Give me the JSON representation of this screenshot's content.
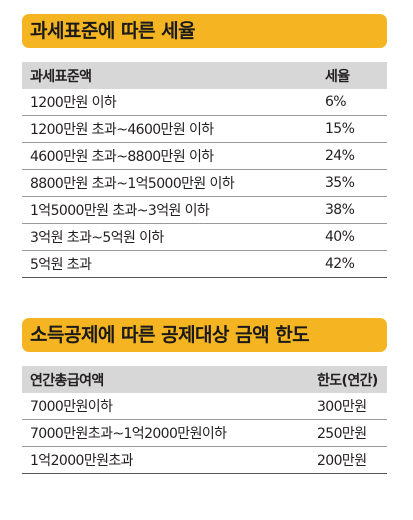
{
  "tax_brackets": {
    "title": "과세표준에 따른 세율",
    "headers": [
      "과세표준액",
      "세율"
    ],
    "rows": [
      {
        "base": "1200만원 이하",
        "rate": "6%"
      },
      {
        "base": "1200만원 초과~4600만원 이하",
        "rate": "15%"
      },
      {
        "base": "4600만원 초과~8800만원 이하",
        "rate": "24%"
      },
      {
        "base": "8800만원 초과~1억5000만원 이하",
        "rate": "35%"
      },
      {
        "base": "1억5000만원 초과~3억원 이하",
        "rate": "38%"
      },
      {
        "base": "3억원 초과~5억원 이하",
        "rate": "40%"
      },
      {
        "base": "5억원 초과",
        "rate": "42%"
      }
    ]
  },
  "deduction_limits": {
    "title": "소득공제에 따른 공제대상 금액 한도",
    "headers": [
      "연간총급여액",
      "한도(연간)"
    ],
    "rows": [
      {
        "salary": "7000만원이하",
        "limit": "300만원"
      },
      {
        "salary": "7000만원초과~1억2000만원이하",
        "limit": "250만원"
      },
      {
        "salary": "1억2000만원초과",
        "limit": "200만원"
      }
    ]
  }
}
